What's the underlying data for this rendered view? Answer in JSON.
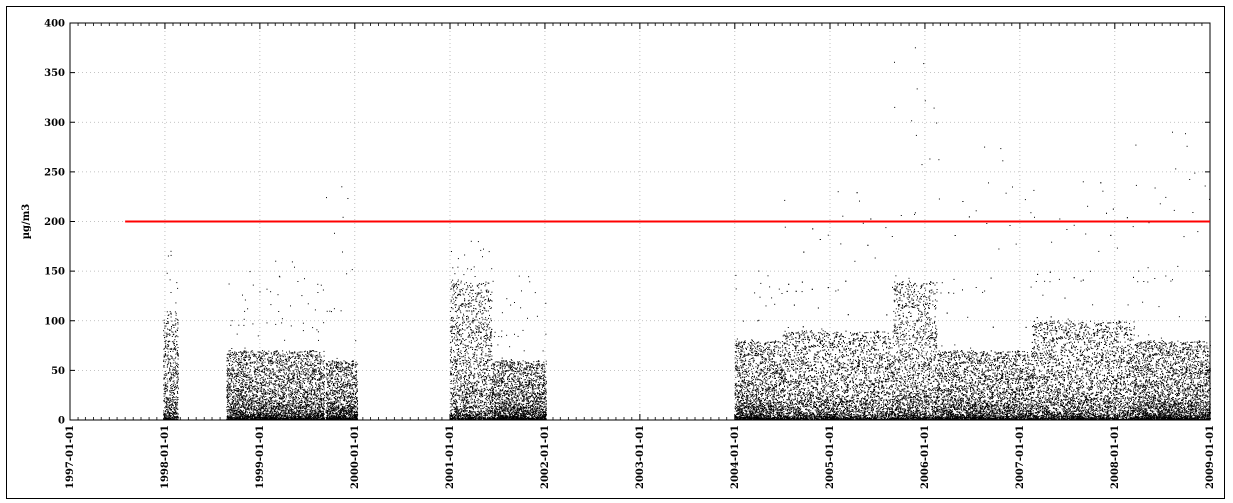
{
  "chart_data": {
    "type": "scatter",
    "title": "",
    "xlabel": "",
    "ylabel": "µg/m3",
    "x_axis_type": "date",
    "xlim": [
      "1997-01-01",
      "2009-01-01"
    ],
    "ylim": [
      0,
      400
    ],
    "y_ticks": [
      0,
      50,
      100,
      150,
      200,
      250,
      300,
      350,
      400
    ],
    "x_ticks": [
      "1997-01-01",
      "1998-01-01",
      "1999-01-01",
      "2000-01-01",
      "2001-01-01",
      "2002-01-01",
      "2003-01-01",
      "2004-01-01",
      "2005-01-01",
      "2006-01-01",
      "2007-01-01",
      "2008-01-01",
      "2009-01-01"
    ],
    "grid": true,
    "grid_style": "dotted",
    "point_color": "#000000",
    "series": [
      {
        "marker": "point",
        "points_summary": "dense hourly measurements; values shown as clusters",
        "clusters": [
          {
            "start": "1997-12-25",
            "end": "1998-02-20",
            "typical_max": 110,
            "peak": 170
          },
          {
            "start": "1998-08-25",
            "end": "1999-09-05",
            "typical_max": 70,
            "peak": 160
          },
          {
            "start": "1999-09-10",
            "end": "2000-01-10",
            "typical_max": 60,
            "peak": 235
          },
          {
            "start": "2001-01-01",
            "end": "2001-06-10",
            "typical_max": 140,
            "peak": 180
          },
          {
            "start": "2001-06-10",
            "end": "2002-01-05",
            "typical_max": 60,
            "peak": 145
          },
          {
            "start": "2003-12-31",
            "end": "2004-07-01",
            "typical_max": 80,
            "peak": 150
          },
          {
            "start": "2004-07-01",
            "end": "2005-09-01",
            "typical_max": 90,
            "peak": 230
          },
          {
            "start": "2005-09-01",
            "end": "2006-02-15",
            "typical_max": 140,
            "peak": 375
          },
          {
            "start": "2006-02-15",
            "end": "2007-02-15",
            "typical_max": 70,
            "peak": 275
          },
          {
            "start": "2007-02-15",
            "end": "2008-03-15",
            "typical_max": 100,
            "peak": 240
          },
          {
            "start": "2008-03-15",
            "end": "2009-01-01",
            "typical_max": 80,
            "peak": 290
          }
        ]
      }
    ],
    "threshold": {
      "value": 200,
      "start": "1997-08-01",
      "end": "2009-01-01",
      "color": "#ff0000"
    }
  }
}
